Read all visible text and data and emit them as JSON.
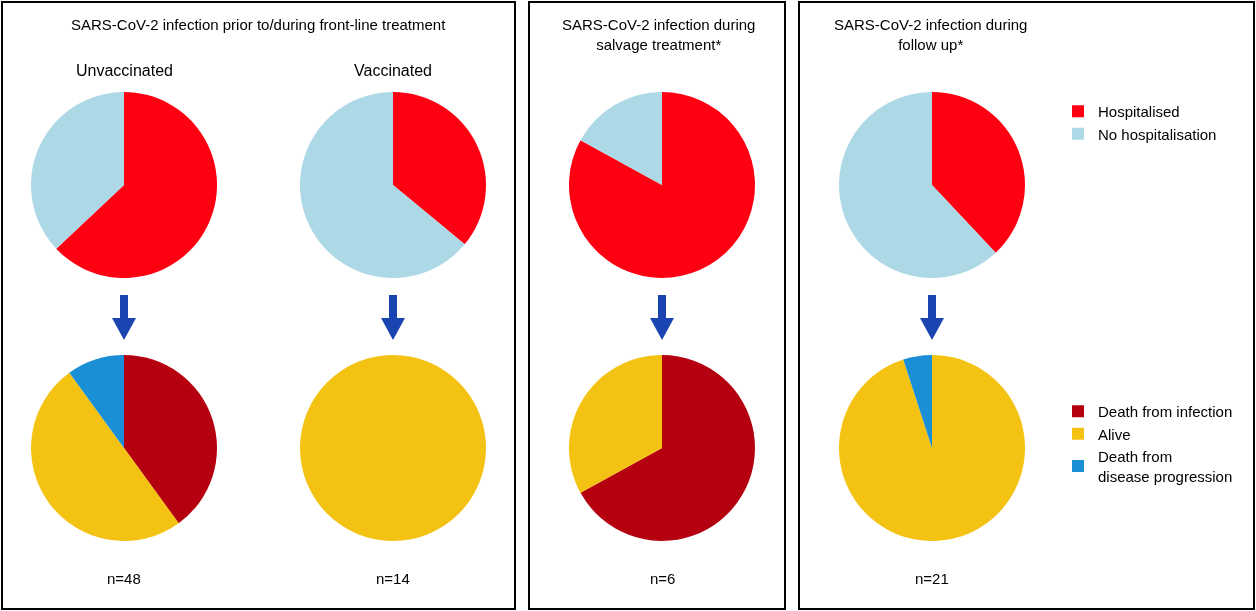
{
  "chart_data": [
    {
      "type": "pie",
      "title": "SARS-CoV-2 infection prior to/during front-line treatment",
      "subtitle": "Unvaccinated",
      "categories": [
        "Hospitalised",
        "No hospitalisation"
      ],
      "values": [
        63,
        37
      ],
      "colors": [
        "#ff0013",
        "#add8e6"
      ],
      "legend": "right"
    },
    {
      "type": "pie",
      "categories": [
        "Death from infection",
        "Alive",
        "Death from disease progression"
      ],
      "values": [
        40,
        50,
        10
      ],
      "colors": [
        "#b5000f",
        "#f4c212",
        "#1a8fd6"
      ],
      "annotations": [
        "n=48"
      ],
      "legend": "right"
    },
    {
      "type": "pie",
      "subtitle": "Vaccinated",
      "categories": [
        null,
        null
      ],
      "values": [
        36,
        64
      ],
      "colors": [
        "#ff0013",
        "#add8e6"
      ]
    },
    {
      "type": "pie",
      "categories": [
        null
      ],
      "values": [
        100
      ],
      "colors": [
        "#f4c212"
      ],
      "annotations": [
        "n=14"
      ]
    },
    {
      "type": "pie",
      "title": "SARS-CoV-2 infection during\nsalvage treatment*",
      "categories": [
        null,
        null
      ],
      "values": [
        83,
        17
      ],
      "colors": [
        "#ff0013",
        "#add8e6"
      ]
    },
    {
      "type": "pie",
      "categories": [
        null,
        null
      ],
      "values": [
        67,
        33
      ],
      "colors": [
        "#b5000f",
        "#f4c212"
      ],
      "annotations": [
        "n=6"
      ]
    },
    {
      "type": "pie",
      "title": "SARS-CoV-2 infection during\nfollow up*",
      "categories": [
        null,
        null
      ],
      "values": [
        38,
        62
      ],
      "colors": [
        "#ff0013",
        "#add8e6"
      ]
    },
    {
      "type": "pie",
      "categories": [
        null,
        null
      ],
      "values": [
        95,
        5
      ],
      "colors": [
        "#f4c212",
        "#1a8fd6"
      ],
      "annotations": [
        "n=21"
      ]
    }
  ]
}
